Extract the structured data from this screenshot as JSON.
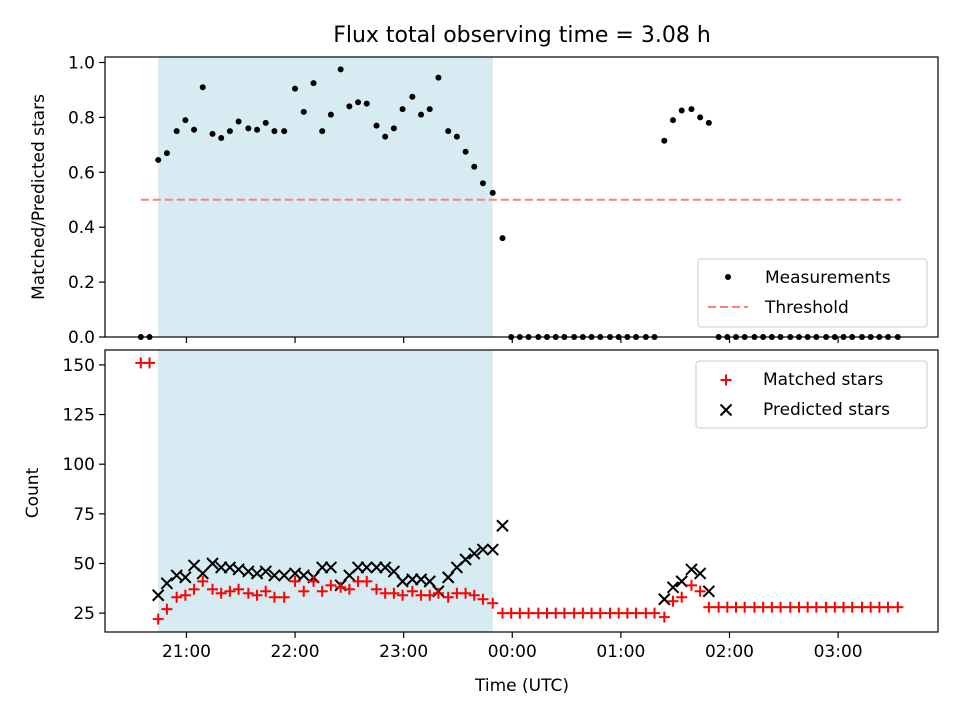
{
  "chart_data": {
    "type": "scatter",
    "title": "Flux total observing time = 3.08 h",
    "xlabel": "Time (UTC)",
    "x_unit": "hours",
    "x_ticks": [
      {
        "value": 21,
        "label": "21:00"
      },
      {
        "value": 22,
        "label": "22:00"
      },
      {
        "value": 23,
        "label": "23:00"
      },
      {
        "value": 24,
        "label": "00:00"
      },
      {
        "value": 25,
        "label": "01:00"
      },
      {
        "value": 26,
        "label": "02:00"
      },
      {
        "value": 27,
        "label": "03:00"
      }
    ],
    "xlim": [
      20.25,
      27.92
    ],
    "observing_window": [
      20.74,
      23.82
    ],
    "top": {
      "ylabel": "Matched/Predicted stars",
      "ylim": [
        0,
        1.02
      ],
      "y_ticks": [
        {
          "value": 0.0,
          "label": "0.0"
        },
        {
          "value": 0.2,
          "label": "0.2"
        },
        {
          "value": 0.4,
          "label": "0.4"
        },
        {
          "value": 0.6,
          "label": "0.6"
        },
        {
          "value": 0.8,
          "label": "0.8"
        },
        {
          "value": 1.0,
          "label": "1.0"
        }
      ],
      "threshold": {
        "value": 0.5,
        "x_range": [
          20.58,
          27.58
        ],
        "color": "#ff7f7f"
      },
      "legend": {
        "placement": "lower right",
        "entries": [
          {
            "label": "Measurements",
            "marker": "dot",
            "color": "#000000"
          },
          {
            "label": "Threshold",
            "marker": "dashed-line",
            "color": "#ff7f7f"
          }
        ]
      },
      "series": [
        {
          "name": "Measurements",
          "color": "#000000",
          "points": [
            [
              20.58,
              0.0
            ],
            [
              20.66,
              0.0
            ],
            [
              20.74,
              0.645
            ],
            [
              20.82,
              0.67
            ],
            [
              20.91,
              0.75
            ],
            [
              20.99,
              0.79
            ],
            [
              21.07,
              0.755
            ],
            [
              21.15,
              0.91
            ],
            [
              21.24,
              0.74
            ],
            [
              21.32,
              0.725
            ],
            [
              21.4,
              0.75
            ],
            [
              21.48,
              0.785
            ],
            [
              21.57,
              0.76
            ],
            [
              21.65,
              0.755
            ],
            [
              21.73,
              0.78
            ],
            [
              21.81,
              0.75
            ],
            [
              21.9,
              0.75
            ],
            [
              22.0,
              0.905
            ],
            [
              22.08,
              0.82
            ],
            [
              22.17,
              0.925
            ],
            [
              22.25,
              0.75
            ],
            [
              22.33,
              0.81
            ],
            [
              22.42,
              0.975
            ],
            [
              22.5,
              0.84
            ],
            [
              22.58,
              0.855
            ],
            [
              22.66,
              0.85
            ],
            [
              22.75,
              0.77
            ],
            [
              22.83,
              0.73
            ],
            [
              22.91,
              0.76
            ],
            [
              22.99,
              0.83
            ],
            [
              23.08,
              0.875
            ],
            [
              23.16,
              0.81
            ],
            [
              23.24,
              0.83
            ],
            [
              23.32,
              0.945
            ],
            [
              23.41,
              0.75
            ],
            [
              23.49,
              0.73
            ],
            [
              23.57,
              0.675
            ],
            [
              23.65,
              0.62
            ],
            [
              23.73,
              0.56
            ],
            [
              23.82,
              0.525
            ],
            [
              23.91,
              0.36
            ],
            [
              23.99,
              0.0
            ],
            [
              24.07,
              0.0
            ],
            [
              24.15,
              0.0
            ],
            [
              24.24,
              0.0
            ],
            [
              24.32,
              0.0
            ],
            [
              24.4,
              0.0
            ],
            [
              24.48,
              0.0
            ],
            [
              24.57,
              0.0
            ],
            [
              24.65,
              0.0
            ],
            [
              24.73,
              0.0
            ],
            [
              24.81,
              0.0
            ],
            [
              24.9,
              0.0
            ],
            [
              24.98,
              0.0
            ],
            [
              25.06,
              0.0
            ],
            [
              25.14,
              0.0
            ],
            [
              25.23,
              0.0
            ],
            [
              25.31,
              0.0
            ],
            [
              25.4,
              0.715
            ],
            [
              25.48,
              0.79
            ],
            [
              25.56,
              0.825
            ],
            [
              25.65,
              0.83
            ],
            [
              25.73,
              0.8
            ],
            [
              25.81,
              0.78
            ],
            [
              25.9,
              0.0
            ],
            [
              25.98,
              0.0
            ],
            [
              26.06,
              0.0
            ],
            [
              26.14,
              0.0
            ],
            [
              26.23,
              0.0
            ],
            [
              26.31,
              0.0
            ],
            [
              26.39,
              0.0
            ],
            [
              26.47,
              0.0
            ],
            [
              26.56,
              0.0
            ],
            [
              26.64,
              0.0
            ],
            [
              26.72,
              0.0
            ],
            [
              26.8,
              0.0
            ],
            [
              26.89,
              0.0
            ],
            [
              26.97,
              0.0
            ],
            [
              27.05,
              0.0
            ],
            [
              27.13,
              0.0
            ],
            [
              27.22,
              0.0
            ],
            [
              27.3,
              0.0
            ],
            [
              27.38,
              0.0
            ],
            [
              27.46,
              0.0
            ],
            [
              27.55,
              0.0
            ]
          ]
        }
      ]
    },
    "bottom": {
      "ylabel": "Count",
      "ylim": [
        15.5,
        157.5
      ],
      "y_ticks": [
        {
          "value": 25,
          "label": "25"
        },
        {
          "value": 50,
          "label": "50"
        },
        {
          "value": 75,
          "label": "75"
        },
        {
          "value": 100,
          "label": "100"
        },
        {
          "value": 125,
          "label": "125"
        },
        {
          "value": 150,
          "label": "150"
        }
      ],
      "legend": {
        "placement": "upper right",
        "entries": [
          {
            "label": "Matched stars",
            "marker": "plus",
            "color": "#ff0000"
          },
          {
            "label": "Predicted stars",
            "marker": "x",
            "color": "#000000"
          }
        ]
      },
      "series": [
        {
          "name": "Matched stars",
          "marker": "plus",
          "color": "#ff0000",
          "points": [
            [
              20.58,
              151
            ],
            [
              20.66,
              151
            ],
            [
              20.74,
              22
            ],
            [
              20.82,
              27
            ],
            [
              20.91,
              33
            ],
            [
              20.99,
              34
            ],
            [
              21.07,
              37
            ],
            [
              21.15,
              41
            ],
            [
              21.24,
              37
            ],
            [
              21.32,
              35
            ],
            [
              21.4,
              36
            ],
            [
              21.48,
              37
            ],
            [
              21.57,
              35
            ],
            [
              21.65,
              34
            ],
            [
              21.73,
              36
            ],
            [
              21.81,
              33
            ],
            [
              21.9,
              33
            ],
            [
              22.0,
              41
            ],
            [
              22.08,
              36
            ],
            [
              22.17,
              41
            ],
            [
              22.25,
              36
            ],
            [
              22.33,
              39
            ],
            [
              22.42,
              38
            ],
            [
              22.5,
              37
            ],
            [
              22.58,
              41
            ],
            [
              22.66,
              41
            ],
            [
              22.75,
              37
            ],
            [
              22.83,
              35
            ],
            [
              22.91,
              35
            ],
            [
              22.99,
              34
            ],
            [
              23.08,
              36
            ],
            [
              23.16,
              34
            ],
            [
              23.24,
              34
            ],
            [
              23.32,
              35
            ],
            [
              23.41,
              33
            ],
            [
              23.49,
              35
            ],
            [
              23.57,
              35
            ],
            [
              23.65,
              34
            ],
            [
              23.73,
              32
            ],
            [
              23.82,
              30
            ],
            [
              23.91,
              25
            ],
            [
              23.99,
              25
            ],
            [
              24.07,
              25
            ],
            [
              24.15,
              25
            ],
            [
              24.24,
              25
            ],
            [
              24.32,
              25
            ],
            [
              24.4,
              25
            ],
            [
              24.48,
              25
            ],
            [
              24.57,
              25
            ],
            [
              24.65,
              25
            ],
            [
              24.73,
              25
            ],
            [
              24.81,
              25
            ],
            [
              24.9,
              25
            ],
            [
              24.98,
              25
            ],
            [
              25.06,
              25
            ],
            [
              25.14,
              25
            ],
            [
              25.23,
              25
            ],
            [
              25.31,
              25
            ],
            [
              25.4,
              23
            ],
            [
              25.48,
              31
            ],
            [
              25.56,
              33
            ],
            [
              25.65,
              39
            ],
            [
              25.73,
              36
            ],
            [
              25.81,
              28
            ],
            [
              25.9,
              28
            ],
            [
              25.98,
              28
            ],
            [
              26.06,
              28
            ],
            [
              26.14,
              28
            ],
            [
              26.23,
              28
            ],
            [
              26.31,
              28
            ],
            [
              26.39,
              28
            ],
            [
              26.47,
              28
            ],
            [
              26.56,
              28
            ],
            [
              26.64,
              28
            ],
            [
              26.72,
              28
            ],
            [
              26.8,
              28
            ],
            [
              26.89,
              28
            ],
            [
              26.97,
              28
            ],
            [
              27.05,
              28
            ],
            [
              27.13,
              28
            ],
            [
              27.22,
              28
            ],
            [
              27.3,
              28
            ],
            [
              27.38,
              28
            ],
            [
              27.46,
              28
            ],
            [
              27.55,
              28
            ]
          ]
        },
        {
          "name": "Predicted stars",
          "marker": "x",
          "color": "#000000",
          "points": [
            [
              20.74,
              34
            ],
            [
              20.82,
              40
            ],
            [
              20.91,
              44
            ],
            [
              20.99,
              43
            ],
            [
              21.07,
              49
            ],
            [
              21.15,
              45
            ],
            [
              21.24,
              50
            ],
            [
              21.32,
              48
            ],
            [
              21.4,
              48
            ],
            [
              21.48,
              47
            ],
            [
              21.57,
              46
            ],
            [
              21.65,
              45
            ],
            [
              21.73,
              46
            ],
            [
              21.81,
              44
            ],
            [
              21.9,
              44
            ],
            [
              22.0,
              45
            ],
            [
              22.08,
              44
            ],
            [
              22.17,
              43
            ],
            [
              22.25,
              48
            ],
            [
              22.33,
              48
            ],
            [
              22.42,
              39
            ],
            [
              22.5,
              44
            ],
            [
              22.58,
              48
            ],
            [
              22.66,
              48
            ],
            [
              22.75,
              48
            ],
            [
              22.83,
              48
            ],
            [
              22.91,
              46
            ],
            [
              22.99,
              41
            ],
            [
              23.08,
              42
            ],
            [
              23.16,
              42
            ],
            [
              23.24,
              41
            ],
            [
              23.32,
              36
            ],
            [
              23.41,
              43
            ],
            [
              23.49,
              48
            ],
            [
              23.57,
              52
            ],
            [
              23.65,
              55
            ],
            [
              23.73,
              57
            ],
            [
              23.82,
              57
            ],
            [
              23.91,
              69
            ],
            [
              25.4,
              32
            ],
            [
              25.48,
              38
            ],
            [
              25.56,
              41
            ],
            [
              25.65,
              47
            ],
            [
              25.73,
              45
            ],
            [
              25.81,
              36
            ]
          ]
        }
      ]
    }
  }
}
